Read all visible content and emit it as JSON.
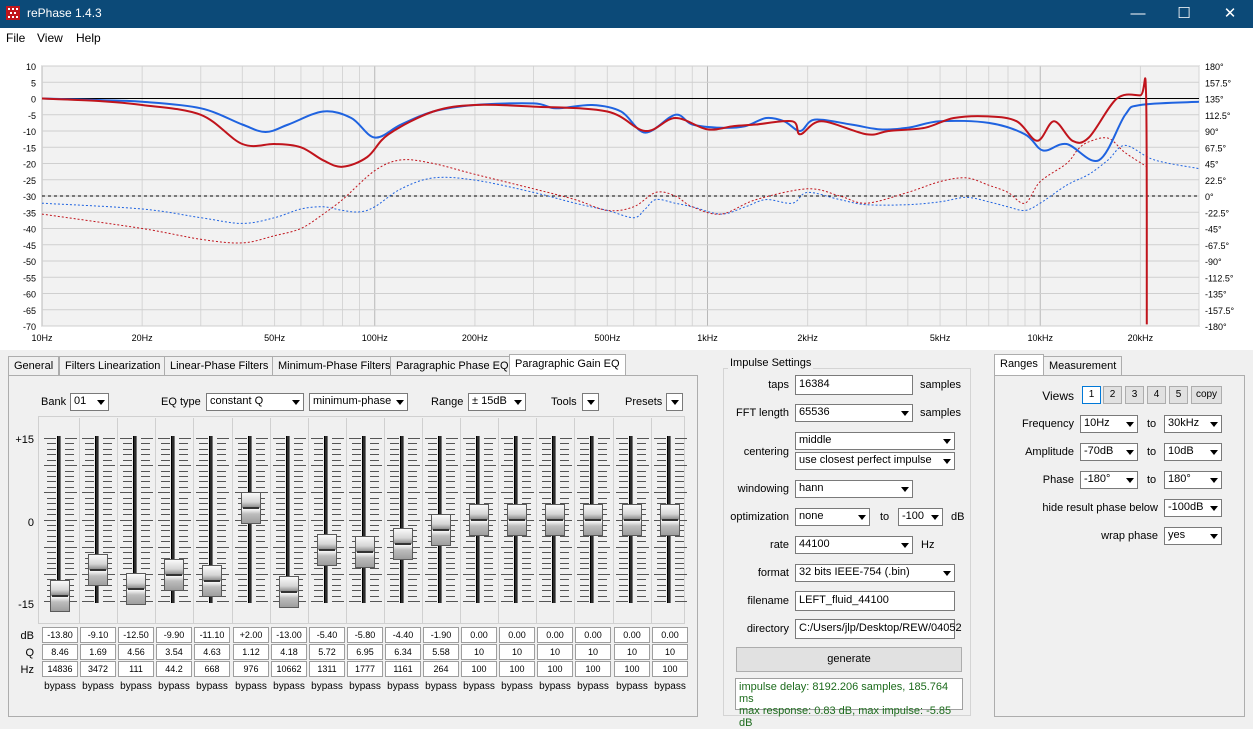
{
  "window": {
    "title": "rePhase 1.4.3"
  },
  "menu": [
    "File",
    "View",
    "Help"
  ],
  "plot": {
    "y_ticks_left": [
      "10",
      "5",
      "0",
      "-5",
      "-10",
      "-15",
      "-20",
      "-25",
      "-30",
      "-35",
      "-40",
      "-45",
      "-50",
      "-55",
      "-60",
      "-65",
      "-70"
    ],
    "y_ticks_right": [
      "180°",
      "157.5°",
      "135°",
      "112.5°",
      "90°",
      "67.5°",
      "45°",
      "22.5°",
      "0°",
      "-22.5°",
      "-45°",
      "-67.5°",
      "-90°",
      "-112.5°",
      "-135°",
      "-157.5°",
      "-180°"
    ],
    "x_ticks": [
      "10Hz",
      "20Hz",
      "50Hz",
      "100Hz",
      "200Hz",
      "500Hz",
      "1kHz",
      "2kHz",
      "5kHz",
      "10kHz",
      "20kHz"
    ],
    "x_tick_values": [
      10,
      20,
      50,
      100,
      200,
      500,
      1000,
      2000,
      5000,
      10000,
      20000
    ],
    "x_range": [
      10,
      30000
    ],
    "amplitude_range": [
      -70,
      10
    ],
    "phase_range": [
      -180,
      180
    ],
    "grid": true,
    "colors": {
      "blue": "#1f63e0",
      "red": "#c0141c"
    },
    "series": [
      {
        "color": "blue",
        "style": "solid",
        "axis": "amplitude",
        "points": [
          [
            10,
            0
          ],
          [
            15,
            -0.5
          ],
          [
            20,
            -1
          ],
          [
            30,
            -3
          ],
          [
            40,
            -8
          ],
          [
            47,
            -10.3
          ],
          [
            55,
            -8
          ],
          [
            70,
            -4
          ],
          [
            85,
            -6
          ],
          [
            100,
            -12
          ],
          [
            120,
            -8
          ],
          [
            150,
            -4
          ],
          [
            200,
            -2
          ],
          [
            300,
            -1.5
          ],
          [
            350,
            -3
          ],
          [
            450,
            -2
          ],
          [
            550,
            -4
          ],
          [
            650,
            -10.5
          ],
          [
            800,
            -5
          ],
          [
            900,
            -8
          ],
          [
            1100,
            -9
          ],
          [
            1300,
            -8.5
          ],
          [
            1500,
            -6
          ],
          [
            1700,
            -7
          ],
          [
            1900,
            -10
          ],
          [
            2100,
            -6.5
          ],
          [
            2700,
            -8
          ],
          [
            3300,
            -9.5
          ],
          [
            4000,
            -9
          ],
          [
            5000,
            -7
          ],
          [
            7000,
            -7.5
          ],
          [
            9000,
            -11
          ],
          [
            10200,
            -16
          ],
          [
            12000,
            -14
          ],
          [
            15000,
            -19
          ],
          [
            18000,
            -5
          ],
          [
            20000,
            -2
          ],
          [
            30000,
            -1
          ]
        ]
      },
      {
        "color": "red",
        "style": "solid",
        "axis": "amplitude",
        "points": [
          [
            10,
            0
          ],
          [
            15,
            -0.8
          ],
          [
            20,
            -2
          ],
          [
            30,
            -5
          ],
          [
            40,
            -14
          ],
          [
            50,
            -14
          ],
          [
            60,
            -15
          ],
          [
            70,
            -19
          ],
          [
            80,
            -21
          ],
          [
            95,
            -18
          ],
          [
            110,
            -11
          ],
          [
            150,
            -4
          ],
          [
            200,
            -2
          ],
          [
            300,
            -2.5
          ],
          [
            500,
            -4
          ],
          [
            650,
            -10
          ],
          [
            800,
            -6
          ],
          [
            1000,
            -9.5
          ],
          [
            1200,
            -8.5
          ],
          [
            1400,
            -8
          ],
          [
            1800,
            -7
          ],
          [
            1900,
            -11
          ],
          [
            2200,
            -7
          ],
          [
            3000,
            -11
          ],
          [
            3500,
            -10
          ],
          [
            4500,
            -9
          ],
          [
            5500,
            -6
          ],
          [
            7000,
            -5.5
          ],
          [
            8500,
            -7
          ],
          [
            9800,
            -13
          ],
          [
            11000,
            -7
          ],
          [
            12500,
            -13
          ],
          [
            14000,
            -12
          ],
          [
            17000,
            0
          ],
          [
            20000,
            1
          ],
          [
            20800,
            1
          ],
          [
            20900,
            -69.5
          ]
        ]
      },
      {
        "color": "blue",
        "style": "dotted",
        "axis": "phase",
        "points": [
          [
            10,
            -10
          ],
          [
            20,
            -18
          ],
          [
            30,
            -30
          ],
          [
            40,
            -38
          ],
          [
            50,
            -30
          ],
          [
            60,
            -18
          ],
          [
            70,
            -15
          ],
          [
            80,
            -20
          ],
          [
            90,
            -22
          ],
          [
            100,
            -15
          ],
          [
            120,
            10
          ],
          [
            150,
            25
          ],
          [
            200,
            22
          ],
          [
            300,
            5
          ],
          [
            400,
            -10
          ],
          [
            500,
            -20
          ],
          [
            600,
            -30
          ],
          [
            650,
            -18
          ],
          [
            700,
            -5
          ],
          [
            800,
            -10
          ],
          [
            900,
            -15
          ],
          [
            1100,
            -25
          ],
          [
            1300,
            -15
          ],
          [
            1500,
            -5
          ],
          [
            1800,
            -10
          ],
          [
            2000,
            5
          ],
          [
            2500,
            -5
          ],
          [
            3000,
            -12
          ],
          [
            4000,
            -12
          ],
          [
            5000,
            -8
          ],
          [
            6000,
            -2
          ],
          [
            7000,
            -8
          ],
          [
            8000,
            -15
          ],
          [
            9000,
            -20
          ],
          [
            10000,
            -10
          ],
          [
            12000,
            15
          ],
          [
            14000,
            30
          ],
          [
            16000,
            50
          ],
          [
            18000,
            70
          ],
          [
            22000,
            50
          ],
          [
            30000,
            38
          ]
        ]
      },
      {
        "color": "red",
        "style": "dotted",
        "axis": "phase",
        "points": [
          [
            10,
            -25
          ],
          [
            20,
            -45
          ],
          [
            30,
            -60
          ],
          [
            40,
            -65
          ],
          [
            50,
            -55
          ],
          [
            60,
            -45
          ],
          [
            70,
            -25
          ],
          [
            80,
            -5
          ],
          [
            100,
            35
          ],
          [
            120,
            50
          ],
          [
            150,
            45
          ],
          [
            200,
            30
          ],
          [
            300,
            10
          ],
          [
            400,
            -5
          ],
          [
            500,
            -20
          ],
          [
            600,
            -15
          ],
          [
            700,
            5
          ],
          [
            800,
            0
          ],
          [
            900,
            -15
          ],
          [
            1100,
            -25
          ],
          [
            1400,
            -5
          ],
          [
            2000,
            10
          ],
          [
            2500,
            0
          ],
          [
            3000,
            -10
          ],
          [
            4000,
            5
          ],
          [
            5000,
            20
          ],
          [
            6000,
            25
          ],
          [
            7000,
            15
          ],
          [
            8000,
            5
          ],
          [
            9000,
            -10
          ],
          [
            10000,
            20
          ],
          [
            12000,
            45
          ],
          [
            13000,
            65
          ],
          [
            14000,
            75
          ],
          [
            16000,
            80
          ],
          [
            18000,
            60
          ],
          [
            21000,
            40
          ]
        ]
      }
    ]
  },
  "tabs": [
    "General",
    "Filters Linearization",
    "Linear-Phase Filters",
    "Minimum-Phase Filters",
    "Paragraphic Phase EQ",
    "Paragraphic Gain EQ"
  ],
  "active_tab": 5,
  "gain_eq": {
    "bank_label": "Bank",
    "bank_value": "01",
    "eqtype_label": "EQ type",
    "eqtype_value": "constant Q",
    "phase_mode_value": "minimum-phase",
    "range_label": "Range",
    "range_value": "± 15dB",
    "tools_label": "Tools",
    "presets_label": "Presets",
    "scale": [
      "+15",
      "0",
      "-15"
    ],
    "row_labels": [
      "dB",
      "Q",
      "Hz"
    ],
    "bypass_label": "bypass",
    "bands": [
      {
        "db": "-13.80",
        "q": "8.46",
        "hz": "14836",
        "gain": -13.8
      },
      {
        "db": "-9.10",
        "q": "1.69",
        "hz": "3472",
        "gain": -9.1
      },
      {
        "db": "-12.50",
        "q": "4.56",
        "hz": "111",
        "gain": -12.5
      },
      {
        "db": "-9.90",
        "q": "3.54",
        "hz": "44.2",
        "gain": -9.9
      },
      {
        "db": "-11.10",
        "q": "4.63",
        "hz": "668",
        "gain": -11.1
      },
      {
        "db": "+2.00",
        "q": "1.12",
        "hz": "976",
        "gain": 2.0
      },
      {
        "db": "-13.00",
        "q": "4.18",
        "hz": "10662",
        "gain": -13.0
      },
      {
        "db": "-5.40",
        "q": "5.72",
        "hz": "1311",
        "gain": -5.4
      },
      {
        "db": "-5.80",
        "q": "6.95",
        "hz": "1777",
        "gain": -5.8
      },
      {
        "db": "-4.40",
        "q": "6.34",
        "hz": "1161",
        "gain": -4.4
      },
      {
        "db": "-1.90",
        "q": "5.58",
        "hz": "264",
        "gain": -1.9
      },
      {
        "db": "0.00",
        "q": "10",
        "hz": "100",
        "gain": 0
      },
      {
        "db": "0.00",
        "q": "10",
        "hz": "100",
        "gain": 0
      },
      {
        "db": "0.00",
        "q": "10",
        "hz": "100",
        "gain": 0
      },
      {
        "db": "0.00",
        "q": "10",
        "hz": "100",
        "gain": 0
      },
      {
        "db": "0.00",
        "q": "10",
        "hz": "100",
        "gain": 0
      },
      {
        "db": "0.00",
        "q": "10",
        "hz": "100",
        "gain": 0
      }
    ]
  },
  "impulse": {
    "title": "Impulse Settings",
    "taps_label": "taps",
    "taps_value": "16384",
    "taps_unit": "samples",
    "fft_label": "FFT length",
    "fft_value": "65536",
    "fft_unit": "samples",
    "centering_label": "centering",
    "centering_value": "middle",
    "centering_option": "use closest perfect impulse",
    "windowing_label": "windowing",
    "windowing_value": "hann",
    "optimization_label": "optimization",
    "optimization_value": "none",
    "to_label": "to",
    "optimization_to": "-100",
    "optimization_unit": "dB",
    "rate_label": "rate",
    "rate_value": "44100",
    "rate_unit": "Hz",
    "format_label": "format",
    "format_value": "32 bits IEEE-754 (.bin)",
    "filename_label": "filename",
    "filename_value": "LEFT_fluid_44100",
    "directory_label": "directory",
    "directory_value": "C:/Users/jlp/Desktop/REW/04052",
    "generate_label": "generate",
    "status_line1": "impulse delay: 8192.206 samples, 185.764 ms",
    "status_line2": "max response: 0.83 dB, max impulse: -5.85 dB"
  },
  "right_tabs": [
    "Ranges",
    "Measurement"
  ],
  "ranges": {
    "views_label": "Views",
    "views": [
      "1",
      "2",
      "3",
      "4",
      "5"
    ],
    "copy_label": "copy",
    "frequency_label": "Frequency",
    "frequency_from": "10Hz",
    "frequency_to": "30kHz",
    "amplitude_label": "Amplitude",
    "amplitude_from": "-70dB",
    "amplitude_to": "10dB",
    "phase_label": "Phase",
    "phase_from": "-180°",
    "phase_to": "180°",
    "to_label": "to",
    "hide_label": "hide result phase below",
    "hide_value": "-100dB",
    "wrap_label": "wrap phase",
    "wrap_value": "yes"
  }
}
